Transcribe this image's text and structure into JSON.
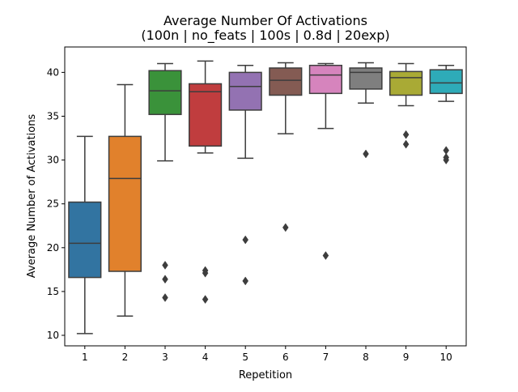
{
  "chart_data": {
    "type": "box",
    "title": "Average Number Of Activations",
    "subtitle": "(100n | no_feats | 100s | 0.8d | 20exp)",
    "xlabel": "Repetition",
    "ylabel": "Average Number of Activations",
    "categories": [
      "1",
      "2",
      "3",
      "4",
      "5",
      "6",
      "7",
      "8",
      "9",
      "10"
    ],
    "yticks": [
      10,
      15,
      20,
      25,
      30,
      35,
      40
    ],
    "ylim": [
      8.8,
      42.9
    ],
    "grid": false,
    "colors": [
      "#3274a1",
      "#e1812c",
      "#3a923a",
      "#c03d3e",
      "#9372b2",
      "#845b53",
      "#d684bd",
      "#7f7f7f",
      "#a9aa35",
      "#2eabb8"
    ],
    "boxes": [
      {
        "category": "1",
        "whisker_low": 10.2,
        "q1": 16.6,
        "median": 20.5,
        "q3": 25.2,
        "whisker_high": 32.7,
        "outliers": []
      },
      {
        "category": "2",
        "whisker_low": 12.2,
        "q1": 17.3,
        "median": 27.9,
        "q3": 32.7,
        "whisker_high": 38.6,
        "outliers": []
      },
      {
        "category": "3",
        "whisker_low": 29.9,
        "q1": 35.2,
        "median": 37.9,
        "q3": 40.2,
        "whisker_high": 41.0,
        "outliers": [
          18.0,
          16.4,
          14.3
        ]
      },
      {
        "category": "4",
        "whisker_low": 30.8,
        "q1": 31.6,
        "median": 37.8,
        "q3": 38.7,
        "whisker_high": 41.3,
        "outliers": [
          17.4,
          17.1,
          14.1
        ]
      },
      {
        "category": "5",
        "whisker_low": 30.2,
        "q1": 35.7,
        "median": 38.4,
        "q3": 40.0,
        "whisker_high": 40.8,
        "outliers": [
          20.9,
          16.2
        ]
      },
      {
        "category": "6",
        "whisker_low": 33.0,
        "q1": 37.4,
        "median": 39.1,
        "q3": 40.5,
        "whisker_high": 41.1,
        "outliers": [
          22.3
        ]
      },
      {
        "category": "7",
        "whisker_low": 33.6,
        "q1": 37.6,
        "median": 39.7,
        "q3": 40.8,
        "whisker_high": 41.0,
        "outliers": [
          19.1
        ]
      },
      {
        "category": "8",
        "whisker_low": 36.5,
        "q1": 38.1,
        "median": 40.0,
        "q3": 40.5,
        "whisker_high": 41.1,
        "outliers": [
          30.7
        ]
      },
      {
        "category": "9",
        "whisker_low": 36.2,
        "q1": 37.4,
        "median": 39.4,
        "q3": 40.1,
        "whisker_high": 41.0,
        "outliers": [
          32.9,
          31.8
        ]
      },
      {
        "category": "10",
        "whisker_low": 36.7,
        "q1": 37.6,
        "median": 38.8,
        "q3": 40.3,
        "whisker_high": 40.8,
        "outliers": [
          31.1,
          30.3,
          30.0
        ]
      }
    ]
  }
}
